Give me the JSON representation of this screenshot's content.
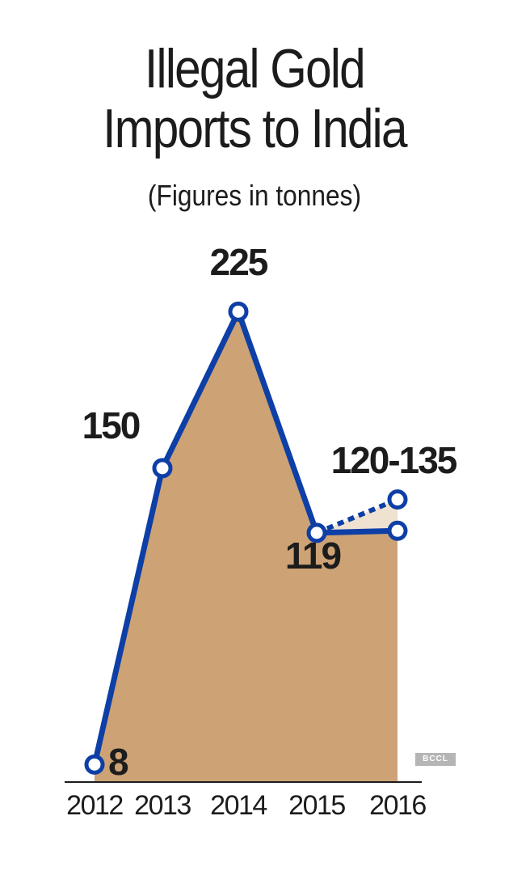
{
  "chart_data": {
    "type": "area",
    "title": [
      "Illegal Gold",
      "Imports to India"
    ],
    "subtitle": "(Figures in tonnes)",
    "categories": [
      "2012",
      "2013",
      "2014",
      "2015",
      "2016"
    ],
    "series": [
      {
        "values": [
          8,
          150,
          225,
          119,
          120
        ]
      },
      {
        "values": [
          null,
          null,
          null,
          119,
          135
        ],
        "style": "dotted"
      }
    ],
    "data_labels": [
      "8",
      "150",
      "225",
      "119",
      "120-135"
    ],
    "ylim": [
      0,
      240
    ],
    "grid": false,
    "colors": {
      "fill": "#cda275",
      "fill_light": "#f0e2d1",
      "line": "#0d3fa6",
      "text": "#1c1c1c"
    }
  },
  "credit": "BCCL"
}
